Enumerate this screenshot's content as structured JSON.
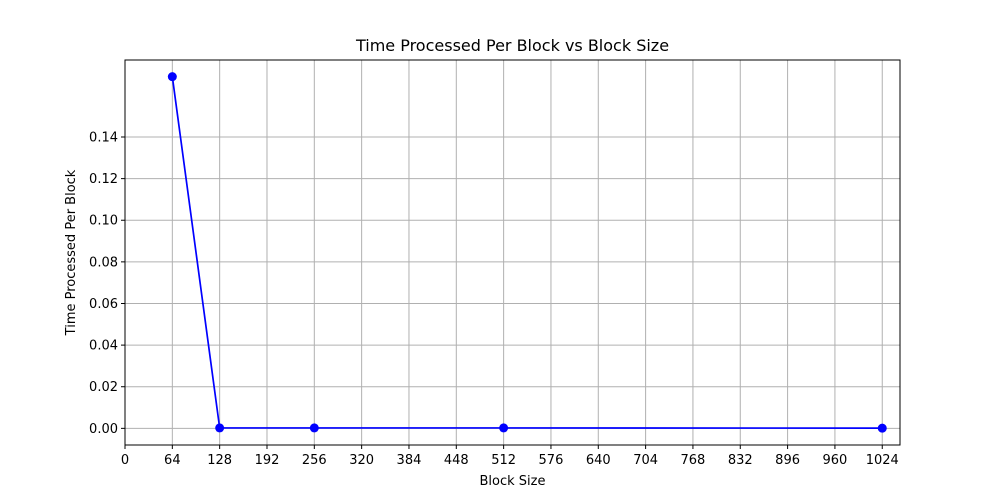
{
  "chart_data": {
    "type": "line",
    "title": "Time Processed Per Block vs Block Size",
    "xlabel": "Block Size",
    "ylabel": "Time Processed Per Block",
    "xlim": [
      0,
      1048
    ],
    "ylim": [
      -0.008,
      0.177
    ],
    "xticks": [
      0,
      64,
      128,
      192,
      256,
      320,
      384,
      448,
      512,
      576,
      640,
      704,
      768,
      832,
      896,
      960,
      1024
    ],
    "yticks": [
      0.0,
      0.02,
      0.04,
      0.06,
      0.08,
      0.1,
      0.12,
      0.14
    ],
    "ytick_labels": [
      "0.00",
      "0.02",
      "0.04",
      "0.06",
      "0.08",
      "0.10",
      "0.12",
      "0.14"
    ],
    "grid": true,
    "series": [
      {
        "color": "#0000ff",
        "marker": "circle",
        "x": [
          64,
          128,
          256,
          512,
          1024
        ],
        "y": [
          0.169,
          0.0002,
          0.0002,
          0.0002,
          0.0001
        ]
      }
    ]
  }
}
